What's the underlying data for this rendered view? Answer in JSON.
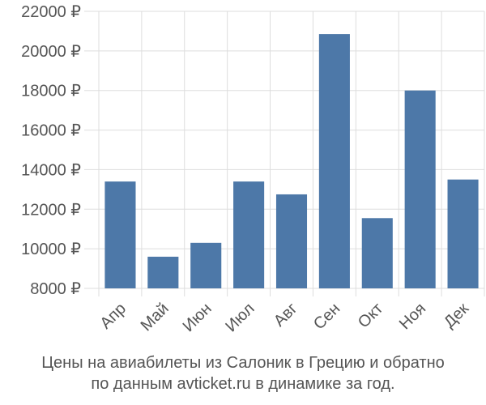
{
  "chart_data": {
    "type": "bar",
    "categories": [
      "Апр",
      "Май",
      "Июн",
      "Июл",
      "Авг",
      "Сен",
      "Окт",
      "Ноя",
      "Дек"
    ],
    "values": [
      13400,
      9600,
      10300,
      13400,
      12750,
      20850,
      11550,
      18000,
      13500
    ],
    "ylim": [
      8000,
      22000
    ],
    "yticks": [
      8000,
      10000,
      12000,
      14000,
      16000,
      18000,
      20000,
      22000
    ],
    "ytick_labels": [
      "8000 ₽",
      "10000 ₽",
      "12000 ₽",
      "14000 ₽",
      "16000 ₽",
      "18000 ₽",
      "20000 ₽",
      "22000 ₽"
    ],
    "grid": true,
    "bar_color": "#4d78a8",
    "grid_color": "#dddddd",
    "text_color": "#555555"
  },
  "caption": {
    "line1": "Цены на авиабилеты из Салоник в Грецию и обратно",
    "line2": "по данным avticket.ru в динамике за год."
  }
}
